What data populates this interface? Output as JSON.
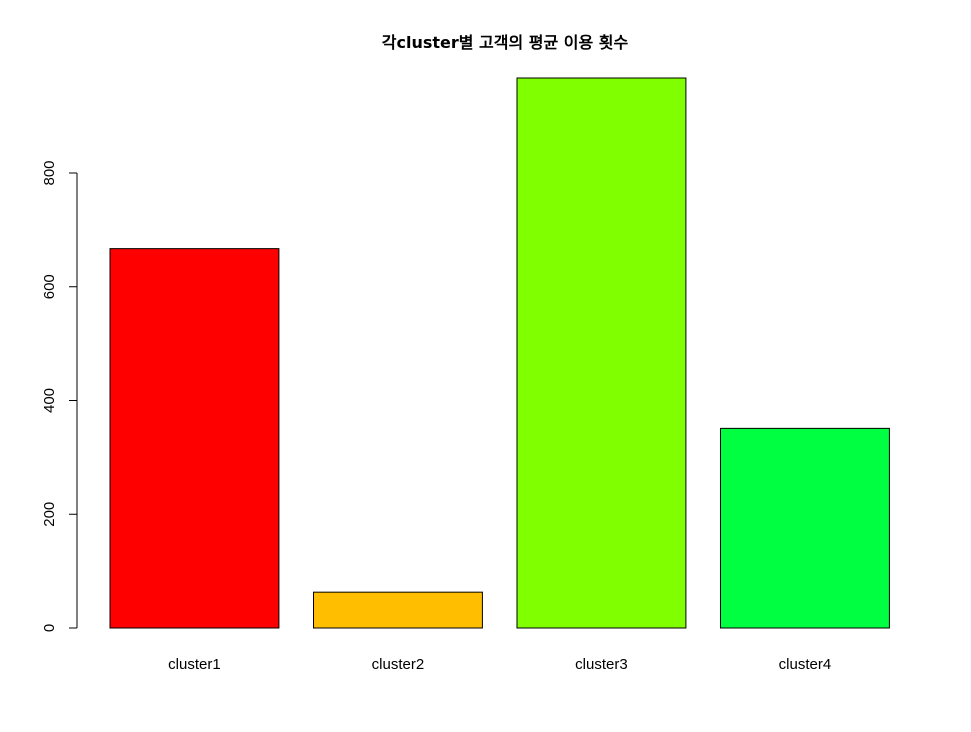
{
  "chart_data": {
    "type": "bar",
    "title": "각cluster별 고객의 평균 이용 횟수",
    "xlabel": "",
    "ylabel": "",
    "categories": [
      "cluster1",
      "cluster2",
      "cluster3",
      "cluster4"
    ],
    "values": [
      667,
      63,
      967,
      351
    ],
    "colors": [
      "#FF0000",
      "#FFBF00",
      "#80FF00",
      "#00FF40"
    ],
    "ylim": [
      0,
      967
    ],
    "yticks": [
      0,
      200,
      400,
      600,
      800
    ],
    "ytick_labels": [
      "0",
      "200",
      "400",
      "600",
      "800"
    ],
    "grid": false,
    "legend": "none"
  }
}
